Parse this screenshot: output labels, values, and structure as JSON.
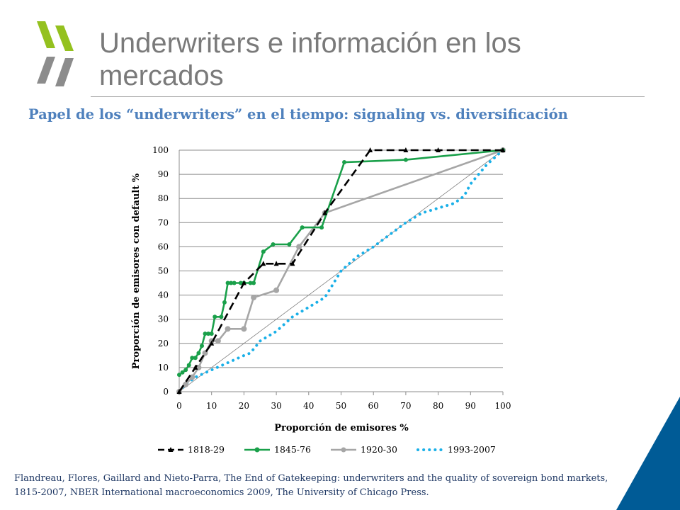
{
  "slide": {
    "title": "Underwriters e información en los mercados",
    "subtitle": "Papel de los “underwriters” en el tiempo: signaling vs. diversificación",
    "source": "Flandreau, Flores, Gaillard and Nieto-Parra, The End of Gatekeeping: underwriters and the quality of sovereign bond markets, 1815-2007, NBER International macroeconomics 2009, The University of Chicago Press.",
    "colors": {
      "title": "#7a7a7a",
      "subtitle": "#4f81bd",
      "source": "#1f3864",
      "logo": "#94c11f",
      "corner": "#005b96"
    }
  },
  "chart_data": {
    "type": "line",
    "title": "",
    "xlabel": "Proporción de emisores %",
    "ylabel": "Proporción de emisores con default %",
    "xlim": [
      0,
      100
    ],
    "ylim": [
      0,
      100
    ],
    "xticks": [
      "0",
      "10",
      "20",
      "30",
      "40",
      "50",
      "60",
      "70",
      "80",
      "90",
      "100"
    ],
    "yticks": [
      "0",
      "10",
      "20",
      "30",
      "40",
      "50",
      "60",
      "70",
      "80",
      "90",
      "100"
    ],
    "grid": "horizontal",
    "legend": "bottom",
    "reference_line": {
      "x": [
        0,
        100
      ],
      "y": [
        0,
        100
      ],
      "color": "#808080"
    },
    "series": [
      {
        "name": "1818-29",
        "style": "dashed",
        "marker": "triangle",
        "color": "#000000",
        "x": [
          0,
          5,
          10,
          20,
          26,
          30,
          35,
          45,
          59,
          70,
          80,
          100
        ],
        "y": [
          0,
          10,
          20,
          45,
          53,
          53,
          53,
          74,
          100,
          100,
          100,
          100
        ]
      },
      {
        "name": "1845-76",
        "style": "solid",
        "marker": "circle",
        "color": "#1aa04a",
        "x": [
          0,
          1,
          2,
          3,
          4,
          5,
          6,
          7,
          8,
          9,
          10,
          11,
          13,
          14,
          15,
          16,
          17,
          19,
          20,
          22,
          23,
          26,
          29,
          34,
          38,
          44,
          51,
          70,
          100
        ],
        "y": [
          7,
          8,
          9,
          11,
          14,
          14,
          16,
          19,
          24,
          24,
          24,
          31,
          31,
          37,
          45,
          45,
          45,
          45,
          45,
          45,
          45,
          58,
          61,
          61,
          68,
          68,
          95,
          96,
          100
        ]
      },
      {
        "name": "1920-30",
        "style": "solid",
        "marker": "circle",
        "color": "#a6a6a6",
        "x": [
          0,
          2,
          4,
          6,
          8,
          10,
          12,
          15,
          20,
          23,
          30,
          37,
          45,
          100
        ],
        "y": [
          0,
          3,
          6,
          10,
          16,
          21,
          21,
          26,
          26,
          39,
          42,
          60,
          74,
          100
        ]
      },
      {
        "name": "1993-2007",
        "style": "dotted",
        "marker": "none",
        "color": "#1ab0e8",
        "x": [
          0,
          2,
          5,
          10,
          15,
          20,
          22,
          25,
          30,
          35,
          40,
          45,
          50,
          55,
          60,
          65,
          70,
          75,
          80,
          85,
          88,
          90,
          95,
          100
        ],
        "y": [
          0,
          3,
          6,
          9,
          12,
          15,
          16,
          21,
          25,
          31,
          35,
          39,
          50,
          56,
          60,
          65,
          70,
          74,
          76,
          78,
          81,
          86,
          94,
          100
        ]
      }
    ]
  }
}
